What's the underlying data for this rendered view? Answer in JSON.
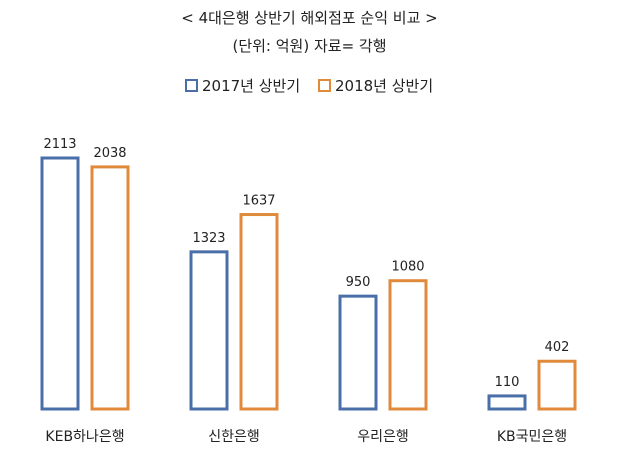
{
  "title": "< 4대은행 상반기 해외점포 순익 비교 >",
  "subtitle": "(단위: 억원) 자료= 각행",
  "colors": {
    "series1": "#4a6fa8",
    "series2": "#e08a3c"
  },
  "chart_data": {
    "type": "bar",
    "categories": [
      "KEB하나은행",
      "신한은행",
      "우리은행",
      "KB국민은행"
    ],
    "series": [
      {
        "name": "2017년 상반기",
        "values": [
          2113,
          1323,
          950,
          110
        ]
      },
      {
        "name": "2018년 상반기",
        "values": [
          2038,
          1637,
          1080,
          402
        ]
      }
    ],
    "legend": "top-center",
    "grid": false,
    "ylim": [
      0,
      2113
    ]
  }
}
